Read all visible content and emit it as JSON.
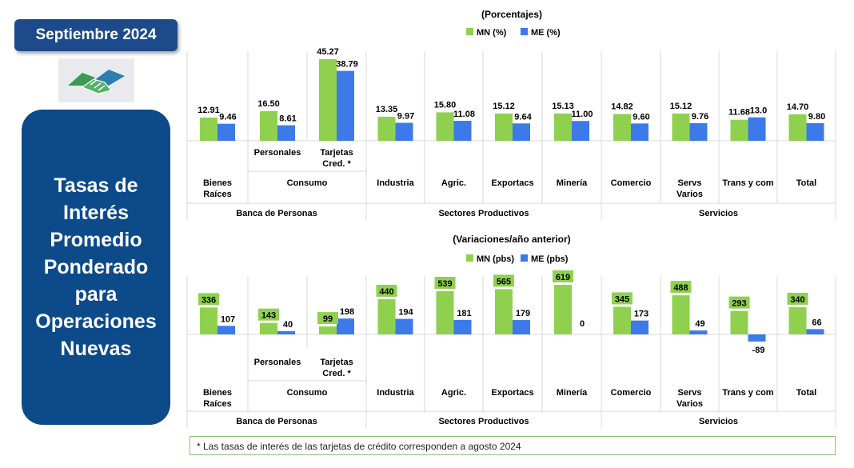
{
  "badge": "Septiembre 2024",
  "panel_title": "Tasas de Interés Promedio Ponderado para Operaciones Nuevas",
  "footnote": "* Las tasas de interés de las tarjetas de crédito corresponden a agosto 2024",
  "colors": {
    "mn": "#8fd14f",
    "me": "#3b7ae8",
    "badge": "#1d4a8a",
    "panel": "#0c4a8a"
  },
  "icons": {
    "logo": "handshake-logo"
  },
  "group_labels": [
    "Banca de Personas",
    "Sectores Productivos",
    "Servicios"
  ],
  "chart_data": [
    {
      "type": "bar",
      "title": "(Porcentajes)",
      "categories": [
        {
          "label": "Bienes Raíces",
          "row": "bottom"
        },
        {
          "label": "Personales",
          "row": "top"
        },
        {
          "label": "Tarjetas Cred. *",
          "row": "top"
        },
        {
          "label": "Industria",
          "row": "bottom"
        },
        {
          "label": "Agric.",
          "row": "bottom"
        },
        {
          "label": "Exportacs",
          "row": "bottom"
        },
        {
          "label": "Minería",
          "row": "bottom"
        },
        {
          "label": "Comercio",
          "row": "bottom"
        },
        {
          "label": "Servs Varios",
          "row": "bottom"
        },
        {
          "label": "Trans y com",
          "row": "bottom"
        },
        {
          "label": "Total",
          "row": "bottom"
        }
      ],
      "consumo_label": "Consumo",
      "series": [
        {
          "name": "MN (%)",
          "values": [
            12.91,
            16.5,
            45.27,
            13.35,
            15.8,
            15.12,
            15.13,
            14.82,
            15.12,
            11.68,
            14.7
          ],
          "labels": [
            "12.91",
            "16.50",
            "45.27",
            "13.35",
            "15.80",
            "15.12",
            "15.13",
            "14.82",
            "15.12",
            "11.68",
            "14.70"
          ]
        },
        {
          "name": "ME (%)",
          "values": [
            9.46,
            8.61,
            38.79,
            9.97,
            11.08,
            9.64,
            11.0,
            9.6,
            9.76,
            13.0,
            9.8
          ],
          "labels": [
            "9.46",
            "8.61",
            "38.79",
            "9.97",
            "11.08",
            "9.64",
            "11.00",
            "9.60",
            "9.76",
            "13.0",
            "9.80"
          ]
        }
      ],
      "ylim": [
        0,
        45.27
      ]
    },
    {
      "type": "bar",
      "title": "(Variaciones/año anterior)",
      "categories": [
        {
          "label": "Bienes Raíces",
          "row": "bottom"
        },
        {
          "label": "Personales",
          "row": "top"
        },
        {
          "label": "Tarjetas Cred. *",
          "row": "top"
        },
        {
          "label": "Industria",
          "row": "bottom"
        },
        {
          "label": "Agric.",
          "row": "bottom"
        },
        {
          "label": "Exportacs",
          "row": "bottom"
        },
        {
          "label": "Minería",
          "row": "bottom"
        },
        {
          "label": "Comercio",
          "row": "bottom"
        },
        {
          "label": "Servs Varios",
          "row": "bottom"
        },
        {
          "label": "Trans y com",
          "row": "bottom"
        },
        {
          "label": "Total",
          "row": "bottom"
        }
      ],
      "consumo_label": "Consumo",
      "series": [
        {
          "name": "MN (pbs)",
          "values": [
            336,
            143,
            99,
            440,
            539,
            565,
            619,
            345,
            488,
            293,
            340
          ],
          "labels": [
            "336",
            "143",
            "99",
            "440",
            "539",
            "565",
            "619",
            "345",
            "488",
            "293",
            "340"
          ]
        },
        {
          "name": "ME (pbs)",
          "values": [
            107,
            40,
            198,
            194,
            181,
            179,
            0,
            173,
            49,
            -89,
            66
          ],
          "labels": [
            "107",
            "40",
            "198",
            "194",
            "181",
            "179",
            "0",
            "173",
            "49",
            "-89",
            "66"
          ]
        }
      ],
      "ylim": [
        -89,
        619
      ]
    }
  ]
}
